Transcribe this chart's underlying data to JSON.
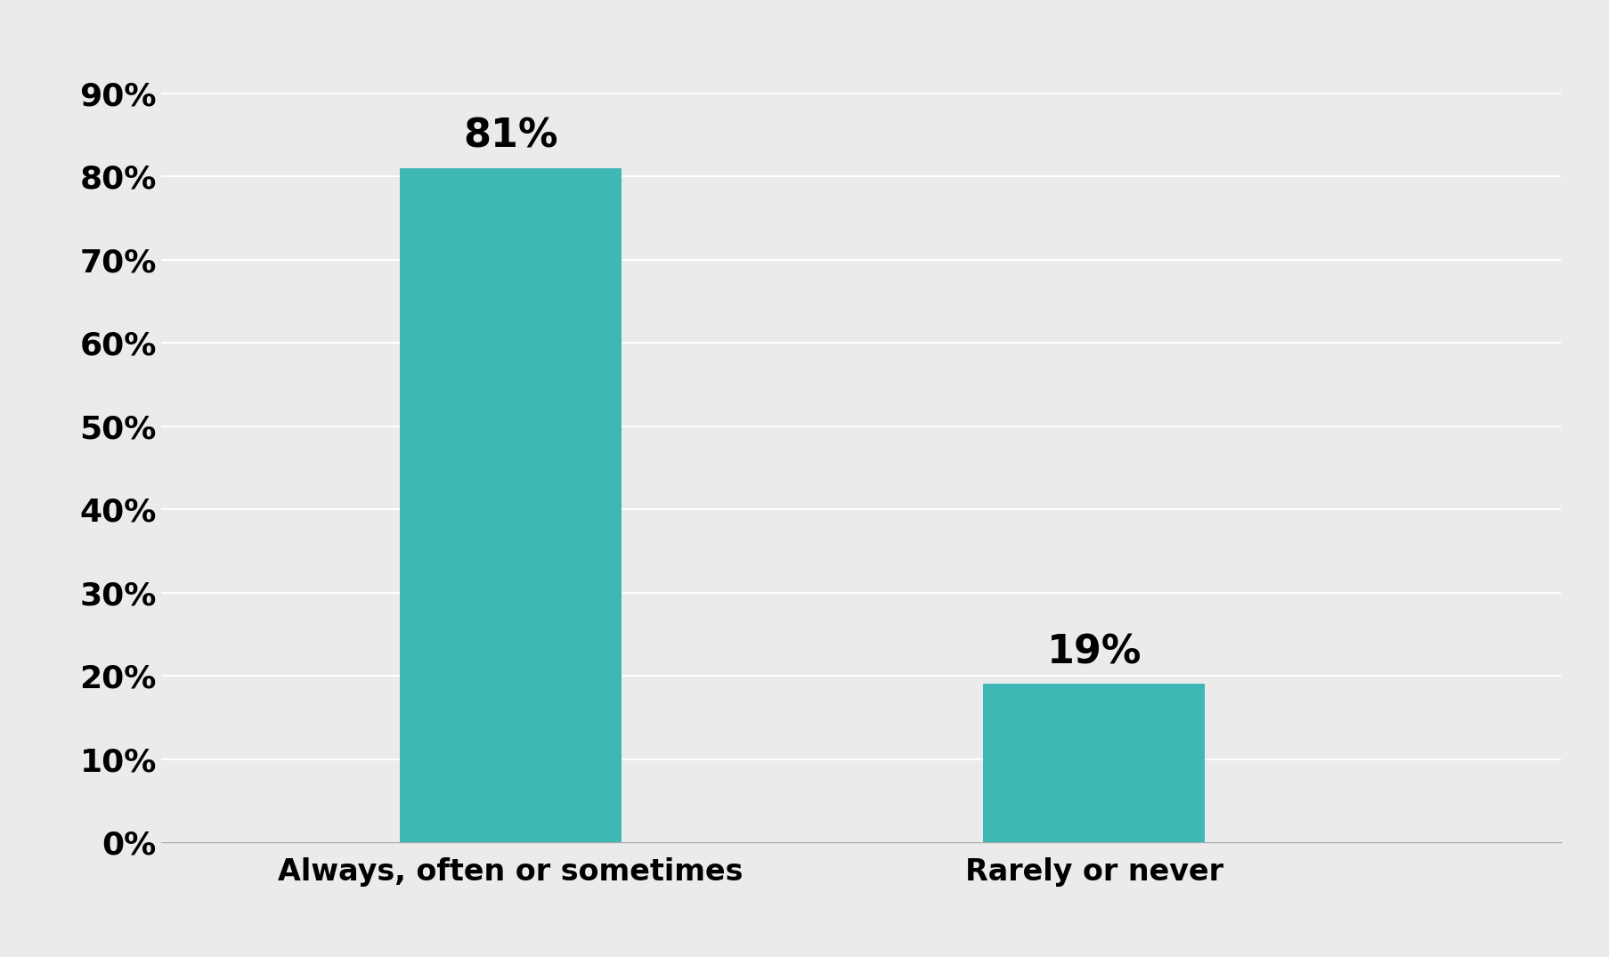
{
  "categories": [
    "Always, often or sometimes",
    "Rarely or never"
  ],
  "values": [
    81,
    19
  ],
  "bar_color": "#3db8b5",
  "background_color": "#ebebeb",
  "ylim": [
    0,
    92
  ],
  "yticks": [
    0,
    10,
    20,
    30,
    40,
    50,
    60,
    70,
    80,
    90
  ],
  "ytick_labels": [
    "0%",
    "10%",
    "20%",
    "30%",
    "40%",
    "50%",
    "60%",
    "70%",
    "80%",
    "90%"
  ],
  "bar_labels": [
    "81%",
    "19%"
  ],
  "label_fontsize": 32,
  "tick_fontsize": 26,
  "xlabel_fontsize": 24,
  "bar_width": 0.38,
  "x_positions": [
    1,
    2
  ],
  "xlim": [
    0.4,
    2.8
  ]
}
